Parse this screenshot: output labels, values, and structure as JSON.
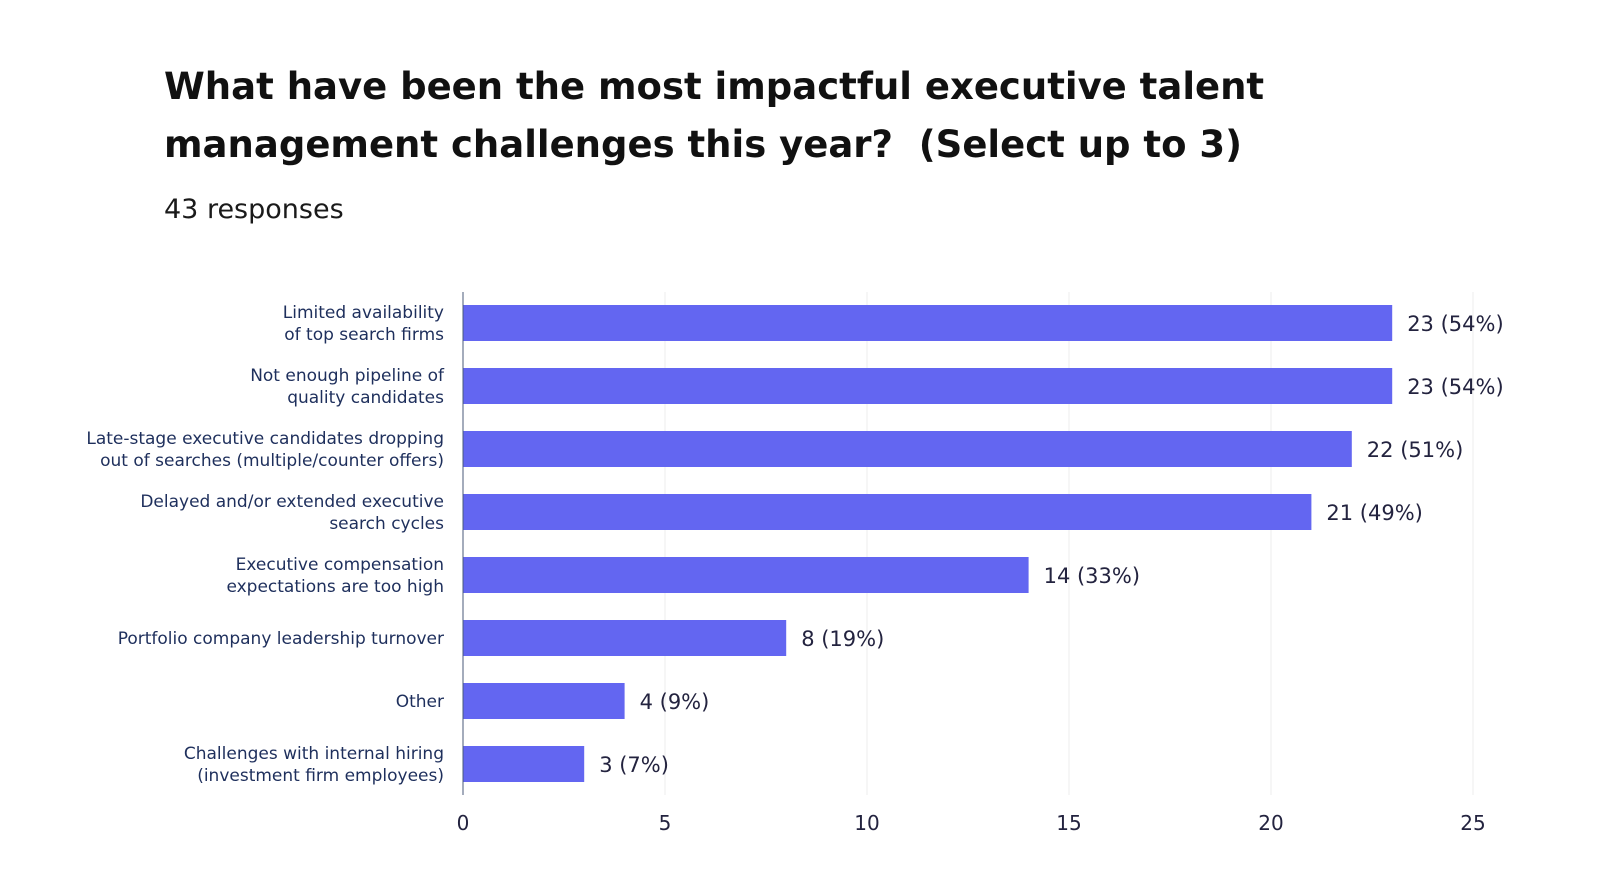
{
  "header": {
    "title_line1": "What have been the most impactful executive talent",
    "title_line2": "management challenges this year?  (Select up to 3)",
    "subtitle": "43 responses"
  },
  "colors": {
    "bar": "#6366f1",
    "category_text": "#1e2f5c",
    "value_text": "#23233f",
    "grid": "#ececec",
    "axis": "#4a5a7a"
  },
  "chart_data": {
    "type": "bar",
    "orientation": "horizontal",
    "categories": [
      [
        "Limited availability",
        "of top search firms"
      ],
      [
        "Not enough pipeline of",
        "quality candidates"
      ],
      [
        "Late-stage executive candidates dropping",
        "out of searches (multiple/counter offers)"
      ],
      [
        "Delayed and/or extended executive",
        "search cycles"
      ],
      [
        "Executive compensation",
        "expectations are too high"
      ],
      [
        "Portfolio company leadership turnover"
      ],
      [
        "Other"
      ],
      [
        "Challenges with internal hiring",
        "(investment firm employees)"
      ]
    ],
    "values": [
      23,
      23,
      22,
      21,
      14,
      8,
      4,
      3
    ],
    "data_labels": [
      "23 (54%)",
      "23 (54%)",
      "22 (51%)",
      "21 (49%)",
      "14 (33%)",
      "8 (19%)",
      "4 (9%)",
      "3 (7%)"
    ],
    "xlim": [
      0,
      25
    ],
    "xticks": [
      0,
      5,
      10,
      15,
      20,
      25
    ],
    "grid": true,
    "legend": "none"
  }
}
